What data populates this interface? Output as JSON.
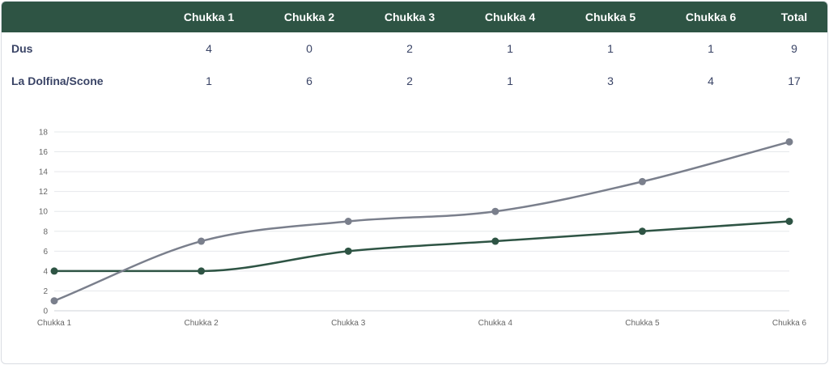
{
  "table": {
    "headers": [
      "",
      "Chukka 1",
      "Chukka 2",
      "Chukka 3",
      "Chukka 4",
      "Chukka 5",
      "Chukka 6",
      "Total"
    ],
    "rows": [
      {
        "team": "Dus",
        "values": [
          "4",
          "0",
          "2",
          "1",
          "1",
          "1"
        ],
        "total": "9"
      },
      {
        "team": "La Dolfina/Scone",
        "values": [
          "1",
          "6",
          "2",
          "1",
          "3",
          "4"
        ],
        "total": "17"
      }
    ]
  },
  "chart_data": {
    "type": "line",
    "categories": [
      "Chukka 1",
      "Chukka 2",
      "Chukka 3",
      "Chukka 4",
      "Chukka 5",
      "Chukka 6"
    ],
    "series": [
      {
        "values": [
          4,
          4,
          6,
          7,
          8,
          9
        ],
        "color": "#2e5444"
      },
      {
        "values": [
          1,
          7,
          9,
          10,
          13,
          17
        ],
        "color": "#7a7f8c"
      }
    ],
    "ylim": [
      0,
      18
    ],
    "yticks": [
      0,
      2,
      4,
      6,
      8,
      10,
      12,
      14,
      16,
      18
    ],
    "grid": true,
    "title": "",
    "xlabel": "",
    "ylabel": ""
  },
  "colors": {
    "header_bg": "#2e5444",
    "grid": "#e6e8eb",
    "tick_text": "#666666"
  }
}
